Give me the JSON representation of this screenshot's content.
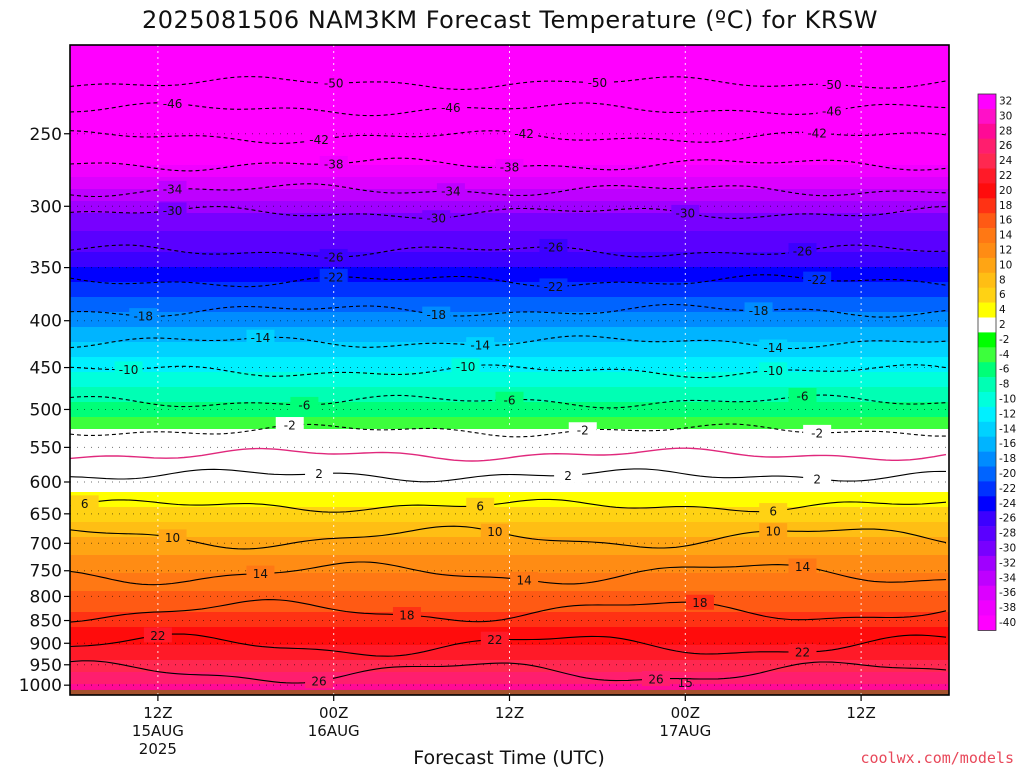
{
  "chart_data": {
    "type": "heatmap",
    "title": "2025081506 NAM3KM Forecast Temperature (ºC) for KRSW",
    "xlabel": "Forecast Time (UTC)",
    "ylabel": "",
    "yscale": "log",
    "ylim": [
      1025,
      200
    ],
    "y_ticks": [
      250,
      300,
      350,
      400,
      450,
      500,
      550,
      600,
      650,
      700,
      750,
      800,
      850,
      900,
      950,
      1000
    ],
    "xlim": [
      "2025-08-15 06Z",
      "2025-08-17 18Z"
    ],
    "x_ticks": [
      {
        "time": "2025-08-15 12Z",
        "lines": [
          "12Z",
          "15AUG",
          "2025"
        ]
      },
      {
        "time": "2025-08-16 00Z",
        "lines": [
          "00Z",
          "16AUG"
        ]
      },
      {
        "time": "2025-08-16 12Z",
        "lines": [
          "12Z"
        ]
      },
      {
        "time": "2025-08-17 00Z",
        "lines": [
          "00Z",
          "17AUG"
        ]
      },
      {
        "time": "2025-08-17 12Z",
        "lines": [
          "12Z"
        ]
      }
    ],
    "vertical_grid": true,
    "temperature_profile": [
      {
        "p": 200,
        "t": -56
      },
      {
        "p": 220,
        "t": -50
      },
      {
        "p": 235,
        "t": -46
      },
      {
        "p": 252,
        "t": -42
      },
      {
        "p": 270,
        "t": -38
      },
      {
        "p": 288,
        "t": -34
      },
      {
        "p": 305,
        "t": -30
      },
      {
        "p": 336,
        "t": -26
      },
      {
        "p": 362,
        "t": -22
      },
      {
        "p": 390,
        "t": -18
      },
      {
        "p": 422,
        "t": -14
      },
      {
        "p": 454,
        "t": -10
      },
      {
        "p": 490,
        "t": -6
      },
      {
        "p": 527,
        "t": -2
      },
      {
        "p": 560,
        "t": 0
      },
      {
        "p": 590,
        "t": 2
      },
      {
        "p": 637,
        "t": 6
      },
      {
        "p": 690,
        "t": 10
      },
      {
        "p": 755,
        "t": 14
      },
      {
        "p": 830,
        "t": 18
      },
      {
        "p": 905,
        "t": 22
      },
      {
        "p": 968,
        "t": 26
      },
      {
        "p": 1025,
        "t": 30
      }
    ],
    "contours": [
      {
        "value": -50,
        "labels": [
          "-50",
          "-50",
          "-50"
        ],
        "label_times": [
          "2025-08-16 00Z",
          "2025-08-16 18Z",
          "2025-08-17 10Z"
        ]
      },
      {
        "value": -46,
        "labels": [
          "-46",
          "-46",
          "-46"
        ],
        "label_times": [
          "2025-08-15 13Z",
          "2025-08-16 08Z",
          "2025-08-17 10Z"
        ]
      },
      {
        "value": -42,
        "labels": [
          "-42",
          "-42",
          "-42"
        ],
        "label_times": [
          "2025-08-15 23Z",
          "2025-08-16 13Z",
          "2025-08-17 09Z"
        ]
      },
      {
        "value": -38,
        "labels": [
          "-38",
          "-38"
        ],
        "label_times": [
          "2025-08-16 00Z",
          "2025-08-16 12Z"
        ]
      },
      {
        "value": -34,
        "labels": [
          "-34",
          "-34"
        ],
        "label_times": [
          "2025-08-15 13Z",
          "2025-08-16 08Z"
        ]
      },
      {
        "value": -30,
        "labels": [
          "-30",
          "-30",
          "-30"
        ],
        "label_times": [
          "2025-08-15 13Z",
          "2025-08-16 07Z",
          "2025-08-17 00Z"
        ]
      },
      {
        "value": -26,
        "labels": [
          "-26",
          "-26",
          "-26"
        ],
        "label_times": [
          "2025-08-16 00Z",
          "2025-08-16 15Z",
          "2025-08-17 08Z"
        ]
      },
      {
        "value": -22,
        "labels": [
          "-22",
          "-22",
          "-22"
        ],
        "label_times": [
          "2025-08-16 00Z",
          "2025-08-16 15Z",
          "2025-08-17 09Z"
        ]
      },
      {
        "value": -18,
        "labels": [
          "-18",
          "-18",
          "-18"
        ],
        "label_times": [
          "2025-08-15 11Z",
          "2025-08-16 07Z",
          "2025-08-17 05Z"
        ]
      },
      {
        "value": -14,
        "labels": [
          "-14",
          "-14",
          "-14"
        ],
        "label_times": [
          "2025-08-15 19Z",
          "2025-08-16 10Z",
          "2025-08-17 06Z"
        ]
      },
      {
        "value": -10,
        "labels": [
          "-10",
          "-10",
          "-10"
        ],
        "label_times": [
          "2025-08-15 10Z",
          "2025-08-16 09Z",
          "2025-08-17 06Z"
        ]
      },
      {
        "value": -6,
        "labels": [
          "-6",
          "-6",
          "-6"
        ],
        "label_times": [
          "2025-08-15 22Z",
          "2025-08-16 12Z",
          "2025-08-17 08Z"
        ]
      },
      {
        "value": -2,
        "labels": [
          "-2",
          "-2",
          "-2"
        ],
        "label_times": [
          "2025-08-15 21Z",
          "2025-08-16 17Z",
          "2025-08-17 09Z"
        ]
      },
      {
        "value": 2,
        "labels": [
          "2",
          "2",
          "2"
        ],
        "label_times": [
          "2025-08-15 23Z",
          "2025-08-16 16Z",
          "2025-08-17 09Z"
        ]
      },
      {
        "value": 6,
        "labels": [
          "6",
          "6",
          "6"
        ],
        "label_times": [
          "2025-08-15 07Z",
          "2025-08-16 10Z",
          "2025-08-17 06Z"
        ]
      },
      {
        "value": 10,
        "labels": [
          "10",
          "10",
          "10"
        ],
        "label_times": [
          "2025-08-15 13Z",
          "2025-08-16 11Z",
          "2025-08-17 06Z"
        ]
      },
      {
        "value": 14,
        "labels": [
          "14",
          "14",
          "14"
        ],
        "label_times": [
          "2025-08-15 19Z",
          "2025-08-16 13Z",
          "2025-08-17 08Z"
        ]
      },
      {
        "value": 18,
        "labels": [
          "18",
          "18"
        ],
        "label_times": [
          "2025-08-16 05Z",
          "2025-08-17 01Z"
        ]
      },
      {
        "value": 22,
        "labels": [
          "22",
          "22",
          "22"
        ],
        "label_times": [
          "2025-08-15 12Z",
          "2025-08-16 11Z",
          "2025-08-17 08Z"
        ]
      },
      {
        "value": 26,
        "labels": [
          "26",
          "26"
        ],
        "label_times": [
          "2025-08-15 23Z",
          "2025-08-16 22Z"
        ]
      }
    ],
    "extra_labels": [
      {
        "text": "15",
        "time": "2025-08-17 00Z",
        "p": 995
      }
    ],
    "freezing_line": {
      "value": 0,
      "color": "#e0287c"
    },
    "surface_fill": {
      "p_from": 1012,
      "color": "#a5522e"
    },
    "colorbar": {
      "labels": [
        "32",
        "30",
        "28",
        "26",
        "24",
        "22",
        "20",
        "18",
        "16",
        "14",
        "12",
        "10",
        "8",
        "6",
        "4",
        "2",
        "-2",
        "-4",
        "-6",
        "-8",
        "-10",
        "-12",
        "-14",
        "-16",
        "-18",
        "-20",
        "-22",
        "-24",
        "-26",
        "-28",
        "-30",
        "-32",
        "-34",
        "-36",
        "-38",
        "-40"
      ],
      "colors": [
        "#ff00ff",
        "#ff10c8",
        "#ff0a96",
        "#ff1e6e",
        "#ff2850",
        "#ff1a28",
        "#ff0c0c",
        "#ff3214",
        "#ff5a14",
        "#ff7814",
        "#ff8c14",
        "#ffa514",
        "#ffbe14",
        "#ffd214",
        "#ffff00",
        "#ffffff",
        "#00ff00",
        "#3cff3c",
        "#00ff78",
        "#00ffb4",
        "#00ffdc",
        "#00f0ff",
        "#00d2ff",
        "#00b4ff",
        "#008cff",
        "#0064ff",
        "#0032ff",
        "#0000ff",
        "#3c00ff",
        "#5a00ff",
        "#7800ff",
        "#a000ff",
        "#be00ff",
        "#dc00ff",
        "#f000ff",
        "#ff00ff"
      ]
    }
  },
  "watermark": "coolwx.com/models",
  "colors": {
    "watermark": "#e8485a",
    "contour": "#000000",
    "grid": "#ffffff",
    "frame": "#000000"
  }
}
